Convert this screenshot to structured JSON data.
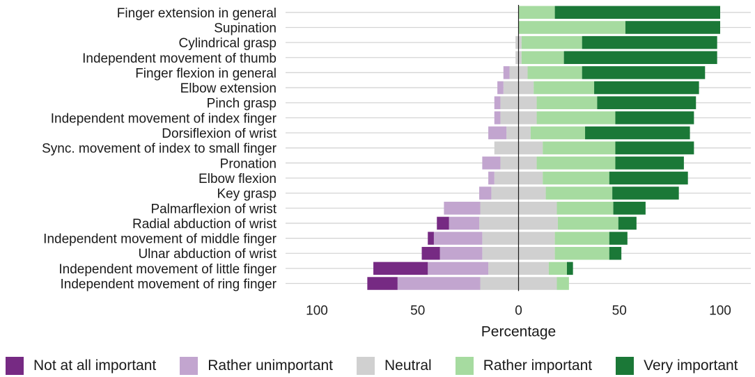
{
  "chart_data": {
    "type": "bar",
    "orientation": "horizontal",
    "stacked": "diverging",
    "title": "",
    "xlabel": "Percentage",
    "ylabel": "",
    "xlim": [
      -100,
      100
    ],
    "xticks": [
      -100,
      -50,
      0,
      50,
      100
    ],
    "xtick_labels": [
      "100",
      "50",
      "0",
      "50",
      "100"
    ],
    "grid": "horizontal",
    "legend_position": "bottom",
    "categories": [
      "Finger extension in general",
      "Supination",
      "Cylindrical grasp",
      "Independent movement of thumb",
      "Finger flexion in general",
      "Elbow extension",
      "Pinch grasp",
      "Independent movement of index finger",
      "Dorsiflexion of wrist",
      "Sync. movement of index to small finger",
      "Pronation",
      "Elbow flexion",
      "Key grasp",
      "Palmarflexion of wrist",
      "Radial abduction of wrist",
      "Independent movement of middle finger",
      "Ulnar abduction of wrist",
      "Independent movement of little finger",
      "Independent movement of ring finger"
    ],
    "series": [
      {
        "name": "Not at all important",
        "color": "#762a83",
        "values": [
          0,
          0,
          0,
          0,
          0,
          0,
          0,
          0,
          0,
          0,
          0,
          0,
          0,
          0,
          6,
          3,
          9,
          27,
          15
        ]
      },
      {
        "name": "Rather unimportant",
        "color": "#c2a5cf",
        "values": [
          0,
          0,
          0,
          0,
          3,
          3,
          3,
          3,
          9,
          0,
          9,
          3,
          6,
          18,
          15,
          24,
          21,
          30,
          41
        ]
      },
      {
        "name": "Neutral",
        "color": "#d0d0d0",
        "values": [
          0,
          0,
          3,
          3,
          9,
          15,
          18,
          18,
          12,
          24,
          18,
          24,
          27,
          38,
          39,
          36,
          36,
          30,
          38
        ]
      },
      {
        "name": "Rather important",
        "color": "#a6dba0",
        "values": [
          18,
          53,
          30,
          21,
          27,
          30,
          30,
          39,
          27,
          36,
          39,
          33,
          33,
          28,
          30,
          27,
          27,
          9,
          6
        ]
      },
      {
        "name": "Very important",
        "color": "#1b7837",
        "values": [
          82,
          47,
          67,
          76,
          61,
          52,
          49,
          39,
          52,
          39,
          34,
          39,
          33,
          16,
          9,
          9,
          6,
          3,
          0
        ]
      }
    ]
  }
}
